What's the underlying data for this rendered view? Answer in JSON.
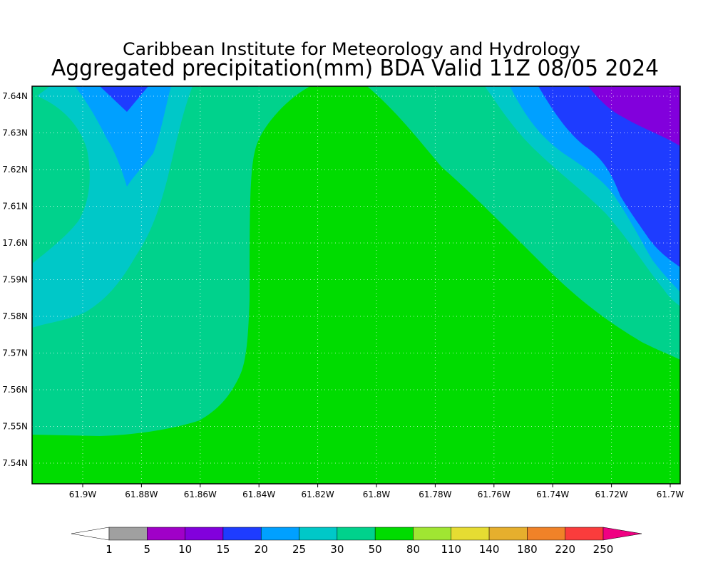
{
  "header": {
    "title": "Caribbean Institute for Meteorology and Hydrology",
    "subtitle": "Aggregated precipitation(mm) BDA Valid 11Z 08/05 2024"
  },
  "map": {
    "x_labels": [
      "61.9W",
      "61.88W",
      "61.86W",
      "61.84W",
      "61.82W",
      "61.8W",
      "61.78W",
      "61.76W",
      "61.74W",
      "61.72W",
      "61.7W"
    ],
    "y_labels": [
      "7.64N",
      "7.63N",
      "7.62N",
      "7.61N",
      "17.6N",
      "7.59N",
      "7.58N",
      "7.57N",
      "7.56N",
      "7.55N",
      "7.54N"
    ]
  },
  "colorbar": {
    "labels": [
      "1",
      "5",
      "10",
      "15",
      "20",
      "25",
      "30",
      "50",
      "80",
      "110",
      "140",
      "180",
      "220",
      "250"
    ],
    "colors": [
      "#a0a0a0",
      "#a000c8",
      "#8200dc",
      "#1e3cff",
      "#00a0ff",
      "#00c8c8",
      "#00d28c",
      "#00dc00",
      "#a0e632",
      "#e6dc32",
      "#e6af2d",
      "#f08228",
      "#fa3c3c"
    ],
    "under_color": "#ffffff",
    "over_color": "#f00082"
  }
}
